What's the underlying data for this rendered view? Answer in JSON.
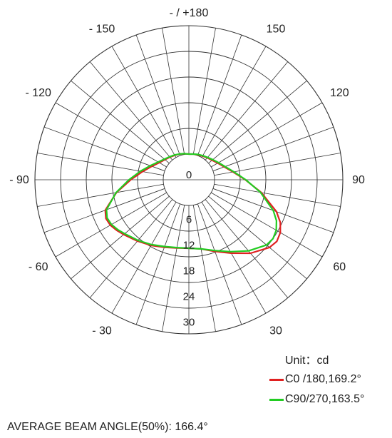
{
  "chart_data": {
    "type": "polar",
    "unit_label": "Unit：cd",
    "angle_labels": [
      {
        "angle": 180,
        "text": "- / +180"
      },
      {
        "angle": -150,
        "text": "- 150"
      },
      {
        "angle": 150,
        "text": "150"
      },
      {
        "angle": -120,
        "text": "- 120"
      },
      {
        "angle": 120,
        "text": "120"
      },
      {
        "angle": -90,
        "text": "- 90"
      },
      {
        "angle": 90,
        "text": "90"
      },
      {
        "angle": -60,
        "text": "- 60"
      },
      {
        "angle": 60,
        "text": "60"
      },
      {
        "angle": -30,
        "text": "- 30"
      },
      {
        "angle": 30,
        "text": "30"
      },
      {
        "angle": 0,
        "text": "0"
      }
    ],
    "radial_ticks": [
      "0",
      "6",
      "12",
      "18",
      "24",
      "30"
    ],
    "radial_max": 30,
    "series": [
      {
        "name": "C0  /180,169.2°",
        "color": "#e02020",
        "points": [
          [
            -180,
            0.0
          ],
          [
            -170,
            0.2
          ],
          [
            -160,
            0.4
          ],
          [
            -150,
            0.6
          ],
          [
            -140,
            0.9
          ],
          [
            -130,
            1.3
          ],
          [
            -120,
            2.0
          ],
          [
            -110,
            3.2
          ],
          [
            -100,
            5.0
          ],
          [
            -90,
            7.6
          ],
          [
            -80,
            11.2
          ],
          [
            -70,
            14.8
          ],
          [
            -65,
            15.4
          ],
          [
            -60,
            15.2
          ],
          [
            -55,
            14.6
          ],
          [
            -50,
            13.9
          ],
          [
            -40,
            12.7
          ],
          [
            -30,
            11.7
          ],
          [
            -20,
            10.8
          ],
          [
            -10,
            10.2
          ],
          [
            0,
            10.0
          ],
          [
            10,
            10.4
          ],
          [
            20,
            11.8
          ],
          [
            30,
            13.8
          ],
          [
            40,
            16.4
          ],
          [
            50,
            18.6
          ],
          [
            55,
            19.1
          ],
          [
            60,
            18.7
          ],
          [
            65,
            17.6
          ],
          [
            70,
            15.8
          ],
          [
            80,
            11.2
          ],
          [
            90,
            7.2
          ],
          [
            100,
            4.5
          ],
          [
            110,
            2.8
          ],
          [
            120,
            1.8
          ],
          [
            130,
            1.1
          ],
          [
            140,
            0.7
          ],
          [
            150,
            0.4
          ],
          [
            160,
            0.2
          ],
          [
            170,
            0.1
          ],
          [
            180,
            0.0
          ]
        ]
      },
      {
        "name": "C90/270,163.5°",
        "color": "#22cc22",
        "points": [
          [
            -180,
            0.0
          ],
          [
            -170,
            0.2
          ],
          [
            -160,
            0.4
          ],
          [
            -150,
            0.7
          ],
          [
            -140,
            1.0
          ],
          [
            -130,
            1.5
          ],
          [
            -120,
            2.3
          ],
          [
            -110,
            3.6
          ],
          [
            -100,
            5.5
          ],
          [
            -90,
            8.0
          ],
          [
            -80,
            11.3
          ],
          [
            -70,
            14.5
          ],
          [
            -65,
            15.1
          ],
          [
            -60,
            14.9
          ],
          [
            -55,
            14.3
          ],
          [
            -50,
            13.6
          ],
          [
            -40,
            12.5
          ],
          [
            -30,
            11.5
          ],
          [
            -20,
            10.6
          ],
          [
            -10,
            10.1
          ],
          [
            0,
            10.0
          ],
          [
            10,
            10.4
          ],
          [
            20,
            11.6
          ],
          [
            30,
            13.4
          ],
          [
            40,
            15.7
          ],
          [
            50,
            17.7
          ],
          [
            55,
            18.0
          ],
          [
            60,
            17.6
          ],
          [
            65,
            16.6
          ],
          [
            70,
            15.0
          ],
          [
            80,
            11.0
          ],
          [
            90,
            7.3
          ],
          [
            100,
            4.7
          ],
          [
            110,
            3.0
          ],
          [
            120,
            2.0
          ],
          [
            130,
            1.3
          ],
          [
            140,
            0.8
          ],
          [
            150,
            0.5
          ],
          [
            160,
            0.3
          ],
          [
            170,
            0.1
          ],
          [
            180,
            0.0
          ]
        ]
      }
    ],
    "footer": "AVERAGE BEAM ANGLE(50%): 166.4°",
    "grid": true
  }
}
